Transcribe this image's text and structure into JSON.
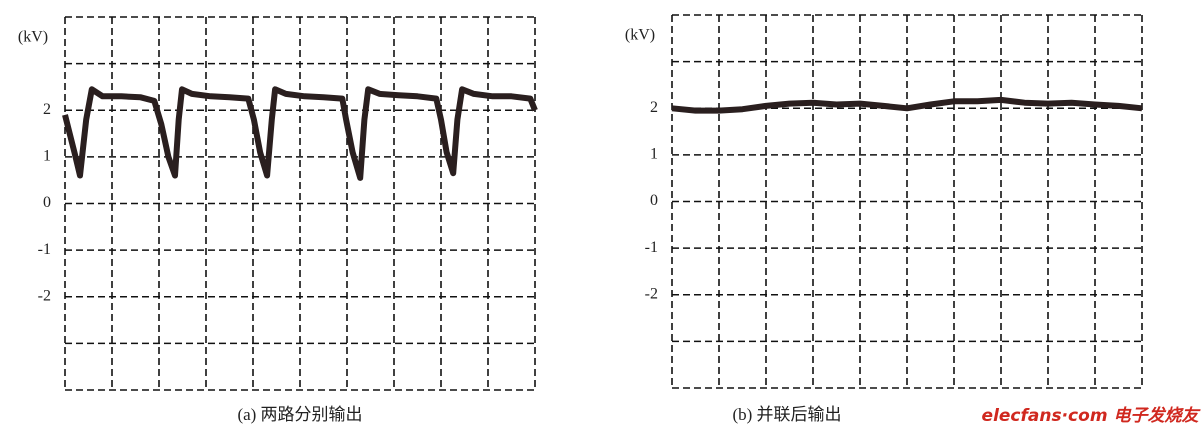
{
  "chart_data": [
    {
      "type": "line",
      "caption": "(a) 两路分别输出",
      "y_unit": "(kV)",
      "color": "#2a1f1f",
      "xlim": [
        0,
        10
      ],
      "ylim": [
        -4,
        4
      ],
      "yticks": [
        -2,
        -1,
        0,
        1,
        2
      ],
      "xgrid": [
        0,
        1,
        2,
        3,
        4,
        5,
        6,
        7,
        8,
        9,
        10
      ],
      "ygrid": [
        -4,
        -3,
        -2,
        -1,
        0,
        1,
        2,
        3,
        4
      ],
      "x": [
        0,
        0.1,
        0.2,
        0.32,
        0.45,
        0.57,
        0.8,
        1.2,
        1.6,
        1.9,
        2.05,
        2.2,
        2.34,
        2.42,
        2.49,
        2.7,
        3.1,
        3.5,
        3.9,
        4.02,
        4.15,
        4.3,
        4.4,
        4.47,
        4.7,
        5.1,
        5.5,
        5.9,
        5.98,
        6.12,
        6.28,
        6.37,
        6.45,
        6.7,
        7.1,
        7.5,
        7.9,
        8.0,
        8.12,
        8.26,
        8.35,
        8.45,
        8.7,
        9.1,
        9.5,
        9.9,
        10
      ],
      "values": [
        1.9,
        1.5,
        1.1,
        0.6,
        1.8,
        2.45,
        2.3,
        2.3,
        2.28,
        2.2,
        1.7,
        1.0,
        0.6,
        1.8,
        2.45,
        2.35,
        2.3,
        2.28,
        2.25,
        1.8,
        1.1,
        0.6,
        1.8,
        2.45,
        2.35,
        2.3,
        2.28,
        2.25,
        1.8,
        1.1,
        0.55,
        1.8,
        2.45,
        2.35,
        2.32,
        2.3,
        2.25,
        1.8,
        1.1,
        0.65,
        1.8,
        2.45,
        2.35,
        2.3,
        2.3,
        2.25,
        2.0
      ]
    },
    {
      "type": "line",
      "caption": "(b) 并联后输出",
      "y_unit": "(kV)",
      "color": "#2a1f1f",
      "xlim": [
        0,
        10
      ],
      "ylim": [
        -4,
        4
      ],
      "yticks": [
        -2,
        -1,
        0,
        1,
        2
      ],
      "xgrid": [
        0,
        1,
        2,
        3,
        4,
        5,
        6,
        7,
        8,
        9,
        10
      ],
      "ygrid": [
        -4,
        -3,
        -2,
        -1,
        0,
        1,
        2,
        3,
        4
      ],
      "x": [
        0,
        0.5,
        1,
        1.5,
        2,
        2.5,
        3,
        3.5,
        4,
        4.5,
        5,
        5.5,
        6,
        6.5,
        7,
        7.5,
        8,
        8.5,
        9,
        9.5,
        10
      ],
      "values": [
        2.0,
        1.95,
        1.95,
        1.98,
        2.05,
        2.1,
        2.12,
        2.08,
        2.1,
        2.05,
        2.0,
        2.08,
        2.15,
        2.15,
        2.18,
        2.12,
        2.1,
        2.12,
        2.08,
        2.05,
        2.0
      ]
    }
  ],
  "watermark": "elecfans·com 电子发烧友"
}
